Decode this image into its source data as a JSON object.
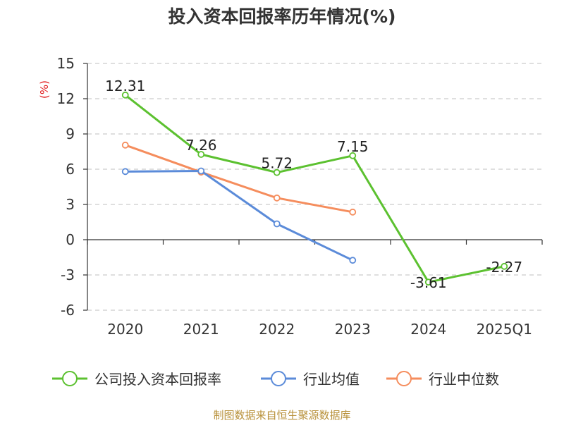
{
  "chart_data": {
    "type": "line",
    "title": "投入资本回报率历年情况(%)",
    "unit_label": "(%)",
    "categories": [
      "2020",
      "2021",
      "2022",
      "2023",
      "2024",
      "2025Q1"
    ],
    "ylim": [
      -6,
      15
    ],
    "yticks": [
      15,
      12,
      9,
      6,
      3,
      0,
      -3,
      -6
    ],
    "grid": true,
    "legend_position": "bottom",
    "series": [
      {
        "name": "公司投入资本回报率",
        "color": "#5cc130",
        "values": [
          12.31,
          7.26,
          5.72,
          7.15,
          -3.61,
          -2.27
        ],
        "labels": [
          "12.31",
          "7.26",
          "5.72",
          "7.15",
          "-3.61",
          "-2.27"
        ]
      },
      {
        "name": "行业均值",
        "color": "#5b8bd9",
        "values": [
          5.8,
          5.85,
          1.35,
          -1.75,
          null,
          null
        ]
      },
      {
        "name": "行业中位数",
        "color": "#f58d5d",
        "values": [
          8.05,
          5.75,
          3.55,
          2.35,
          null,
          null
        ]
      }
    ]
  },
  "source": "制图数据来自恒生聚源数据库"
}
